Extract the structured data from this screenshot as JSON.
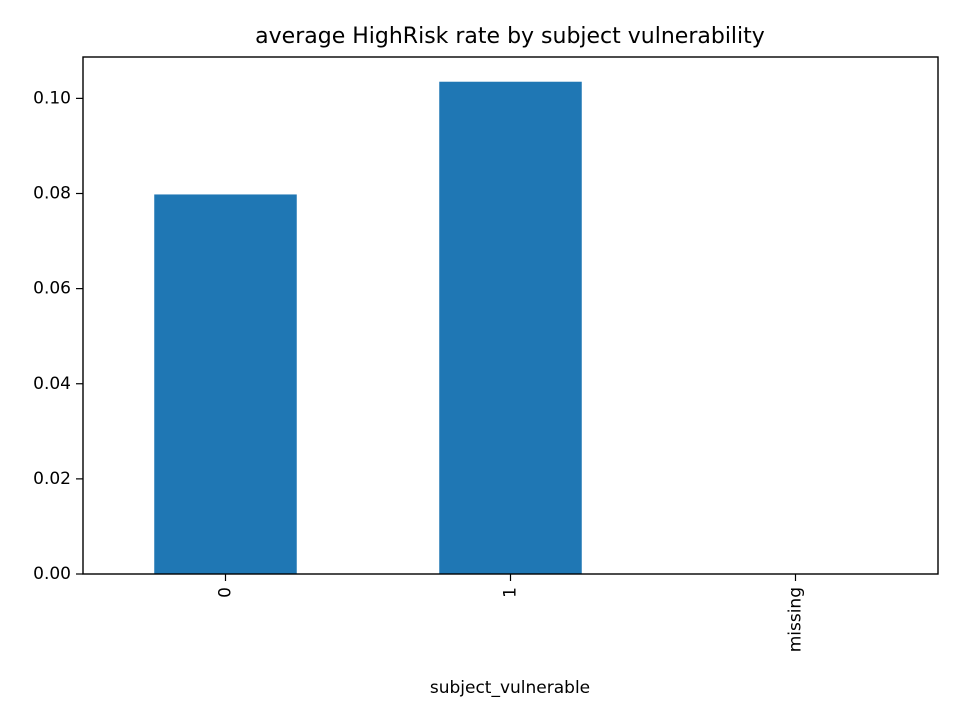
{
  "chart_data": {
    "type": "bar",
    "title": "average HighRisk rate by subject vulnerability",
    "xlabel": "subject_vulnerable",
    "ylabel": "",
    "categories": [
      "0",
      "1",
      "missing"
    ],
    "values": [
      0.0798,
      0.1035,
      0.0
    ],
    "ylim": [
      0,
      0.1087
    ],
    "yticks": [
      0.0,
      0.02,
      0.04,
      0.06,
      0.08,
      0.1
    ],
    "ytick_labels": [
      "0.00",
      "0.02",
      "0.04",
      "0.06",
      "0.08",
      "0.10"
    ],
    "xtick_rotation": "vertical",
    "grid": false,
    "legend": "none",
    "bar_color": "#1f77b4"
  }
}
